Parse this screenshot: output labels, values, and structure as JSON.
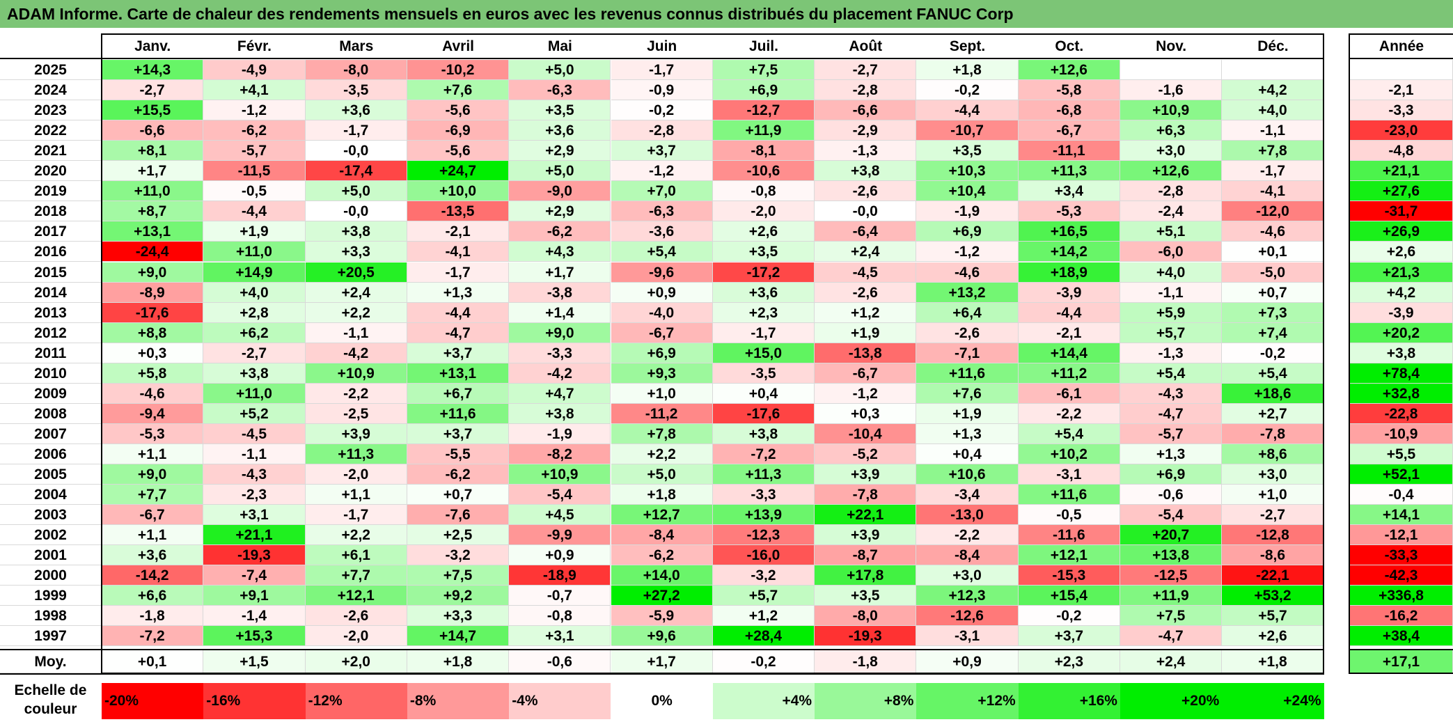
{
  "title": "ADAM Informe. Carte de chaleur des rendements mensuels en euros avec les revenus connus distribués du placement FANUC Corp",
  "chart_data": {
    "type": "heatmap",
    "title": "ADAM Informe. Carte de chaleur des rendements mensuels en euros avec les revenus connus distribués du placement FANUC Corp",
    "months": [
      "Janv.",
      "Févr.",
      "Mars",
      "Avril",
      "Mai",
      "Juin",
      "Juil.",
      "Août",
      "Sept.",
      "Oct.",
      "Nov.",
      "Déc."
    ],
    "annual_header": "Année",
    "rows": [
      {
        "year": "2025",
        "values": [
          "+14,3",
          "-4,9",
          "-8,0",
          "-10,2",
          "+5,0",
          "-1,7",
          "+7,5",
          "-2,7",
          "+1,8",
          "+12,6",
          "",
          ""
        ],
        "annual": ""
      },
      {
        "year": "2024",
        "values": [
          "-2,7",
          "+4,1",
          "-3,5",
          "+7,6",
          "-6,3",
          "-0,9",
          "+6,9",
          "-2,8",
          "-0,2",
          "-5,8",
          "-1,6",
          "+4,2"
        ],
        "annual": "-2,1"
      },
      {
        "year": "2023",
        "values": [
          "+15,5",
          "-1,2",
          "+3,6",
          "-5,6",
          "+3,5",
          "-0,2",
          "-12,7",
          "-6,6",
          "-4,4",
          "-6,8",
          "+10,9",
          "+4,0"
        ],
        "annual": "-3,3"
      },
      {
        "year": "2022",
        "values": [
          "-6,6",
          "-6,2",
          "-1,7",
          "-6,9",
          "+3,6",
          "-2,8",
          "+11,9",
          "-2,9",
          "-10,7",
          "-6,7",
          "+6,3",
          "-1,1"
        ],
        "annual": "-23,0"
      },
      {
        "year": "2021",
        "values": [
          "+8,1",
          "-5,7",
          "-0,0",
          "-5,6",
          "+2,9",
          "+3,7",
          "-8,1",
          "-1,3",
          "+3,5",
          "-11,1",
          "+3,0",
          "+7,8"
        ],
        "annual": "-4,8"
      },
      {
        "year": "2020",
        "values": [
          "+1,7",
          "-11,5",
          "-17,4",
          "+24,7",
          "+5,0",
          "-1,2",
          "-10,6",
          "+3,8",
          "+10,3",
          "+11,3",
          "+12,6",
          "-1,7"
        ],
        "annual": "+21,1"
      },
      {
        "year": "2019",
        "values": [
          "+11,0",
          "-0,5",
          "+5,0",
          "+10,0",
          "-9,0",
          "+7,0",
          "-0,8",
          "-2,6",
          "+10,4",
          "+3,4",
          "-2,8",
          "-4,1"
        ],
        "annual": "+27,6"
      },
      {
        "year": "2018",
        "values": [
          "+8,7",
          "-4,4",
          "-0,0",
          "-13,5",
          "+2,9",
          "-6,3",
          "-2,0",
          "-0,0",
          "-1,9",
          "-5,3",
          "-2,4",
          "-12,0"
        ],
        "annual": "-31,7"
      },
      {
        "year": "2017",
        "values": [
          "+13,1",
          "+1,9",
          "+3,8",
          "-2,1",
          "-6,2",
          "-3,6",
          "+2,6",
          "-6,4",
          "+6,9",
          "+16,5",
          "+5,1",
          "-4,6"
        ],
        "annual": "+26,9"
      },
      {
        "year": "2016",
        "values": [
          "-24,4",
          "+11,0",
          "+3,3",
          "-4,1",
          "+4,3",
          "+5,4",
          "+3,5",
          "+2,4",
          "-1,2",
          "+14,2",
          "-6,0",
          "+0,1"
        ],
        "annual": "+2,6"
      },
      {
        "year": "2015",
        "values": [
          "+9,0",
          "+14,9",
          "+20,5",
          "-1,7",
          "+1,7",
          "-9,6",
          "-17,2",
          "-4,5",
          "-4,6",
          "+18,9",
          "+4,0",
          "-5,0"
        ],
        "annual": "+21,3"
      },
      {
        "year": "2014",
        "values": [
          "-8,9",
          "+4,0",
          "+2,4",
          "+1,3",
          "-3,8",
          "+0,9",
          "+3,6",
          "-2,6",
          "+13,2",
          "-3,9",
          "-1,1",
          "+0,7"
        ],
        "annual": "+4,2"
      },
      {
        "year": "2013",
        "values": [
          "-17,6",
          "+2,8",
          "+2,2",
          "-4,4",
          "+1,4",
          "-4,0",
          "+2,3",
          "+1,2",
          "+6,4",
          "-4,4",
          "+5,9",
          "+7,3"
        ],
        "annual": "-3,9"
      },
      {
        "year": "2012",
        "values": [
          "+8,8",
          "+6,2",
          "-1,1",
          "-4,7",
          "+9,0",
          "-6,7",
          "-1,7",
          "+1,9",
          "-2,6",
          "-2,1",
          "+5,7",
          "+7,4"
        ],
        "annual": "+20,2"
      },
      {
        "year": "2011",
        "values": [
          "+0,3",
          "-2,7",
          "-4,2",
          "+3,7",
          "-3,3",
          "+6,9",
          "+15,0",
          "-13,8",
          "-7,1",
          "+14,4",
          "-1,3",
          "-0,2"
        ],
        "annual": "+3,8"
      },
      {
        "year": "2010",
        "values": [
          "+5,8",
          "+3,8",
          "+10,9",
          "+13,1",
          "-4,2",
          "+9,3",
          "-3,5",
          "-6,7",
          "+11,6",
          "+11,2",
          "+5,4",
          "+5,4"
        ],
        "annual": "+78,4"
      },
      {
        "year": "2009",
        "values": [
          "-4,6",
          "+11,0",
          "-2,2",
          "+6,7",
          "+4,7",
          "+1,0",
          "+0,4",
          "-1,2",
          "+7,6",
          "-6,1",
          "-4,3",
          "+18,6"
        ],
        "annual": "+32,8"
      },
      {
        "year": "2008",
        "values": [
          "-9,4",
          "+5,2",
          "-2,5",
          "+11,6",
          "+3,8",
          "-11,2",
          "-17,6",
          "+0,3",
          "+1,9",
          "-2,2",
          "-4,7",
          "+2,7"
        ],
        "annual": "-22,8"
      },
      {
        "year": "2007",
        "values": [
          "-5,3",
          "-4,5",
          "+3,9",
          "+3,7",
          "-1,9",
          "+7,8",
          "+3,8",
          "-10,4",
          "+1,3",
          "+5,4",
          "-5,7",
          "-7,8"
        ],
        "annual": "-10,9"
      },
      {
        "year": "2006",
        "values": [
          "+1,1",
          "-1,1",
          "+11,3",
          "-5,5",
          "-8,2",
          "+2,2",
          "-7,2",
          "-5,2",
          "+0,4",
          "+10,2",
          "+1,3",
          "+8,6"
        ],
        "annual": "+5,5"
      },
      {
        "year": "2005",
        "values": [
          "+9,0",
          "-4,3",
          "-2,0",
          "-6,2",
          "+10,9",
          "+5,0",
          "+11,3",
          "+3,9",
          "+10,6",
          "-3,1",
          "+6,9",
          "+3,0"
        ],
        "annual": "+52,1"
      },
      {
        "year": "2004",
        "values": [
          "+7,7",
          "-2,3",
          "+1,1",
          "+0,7",
          "-5,4",
          "+1,8",
          "-3,3",
          "-7,8",
          "-3,4",
          "+11,6",
          "-0,6",
          "+1,0"
        ],
        "annual": "-0,4"
      },
      {
        "year": "2003",
        "values": [
          "-6,7",
          "+3,1",
          "-1,7",
          "-7,6",
          "+4,5",
          "+12,7",
          "+13,9",
          "+22,1",
          "-13,0",
          "-0,5",
          "-5,4",
          "-2,7"
        ],
        "annual": "+14,1"
      },
      {
        "year": "2002",
        "values": [
          "+1,1",
          "+21,1",
          "+2,2",
          "+2,5",
          "-9,9",
          "-8,4",
          "-12,3",
          "+3,9",
          "-2,2",
          "-11,6",
          "+20,7",
          "-12,8"
        ],
        "annual": "-12,1"
      },
      {
        "year": "2001",
        "values": [
          "+3,6",
          "-19,3",
          "+6,1",
          "-3,2",
          "+0,9",
          "-6,2",
          "-16,0",
          "-8,7",
          "-8,4",
          "+12,1",
          "+13,8",
          "-8,6"
        ],
        "annual": "-33,3"
      },
      {
        "year": "2000",
        "values": [
          "-14,2",
          "-7,4",
          "+7,7",
          "+7,5",
          "-18,9",
          "+14,0",
          "-3,2",
          "+17,8",
          "+3,0",
          "-15,3",
          "-12,5",
          "-22,1"
        ],
        "annual": "-42,3"
      },
      {
        "year": "1999",
        "values": [
          "+6,6",
          "+9,1",
          "+12,1",
          "+9,2",
          "-0,7",
          "+27,2",
          "+5,7",
          "+3,5",
          "+12,3",
          "+15,4",
          "+11,9",
          "+53,2"
        ],
        "annual": "+336,8"
      },
      {
        "year": "1998",
        "values": [
          "-1,8",
          "-1,4",
          "-2,6",
          "+3,3",
          "-0,8",
          "-5,9",
          "+1,2",
          "-8,0",
          "-12,6",
          "-0,2",
          "+7,5",
          "+5,7"
        ],
        "annual": "-16,2"
      },
      {
        "year": "1997",
        "values": [
          "-7,2",
          "+15,3",
          "-2,0",
          "+14,7",
          "+3,1",
          "+9,6",
          "+28,4",
          "-19,3",
          "-3,1",
          "+3,7",
          "-4,7",
          "+2,6"
        ],
        "annual": "+38,4"
      }
    ],
    "average": {
      "label": "Moy.",
      "values": [
        "+0,1",
        "+1,5",
        "+2,0",
        "+1,8",
        "-0,6",
        "+1,7",
        "-0,2",
        "-1,8",
        "+0,9",
        "+2,3",
        "+2,4",
        "+1,8"
      ],
      "annual": "+17,1"
    },
    "scale": {
      "label": "Echelle de couleur",
      "items": [
        "-20%",
        "-16%",
        "-12%",
        "-8%",
        "-4%",
        "0%",
        "+4%",
        "+8%",
        "+12%",
        "+16%",
        "+20%",
        "+24%"
      ],
      "values": [
        -20,
        -16,
        -12,
        -8,
        -4,
        0,
        4,
        8,
        12,
        16,
        20,
        24
      ]
    },
    "colors": {
      "negative": "#ff0000",
      "neutral": "#ffffff",
      "positive": "#00ee00",
      "title_bar": "#7cc576"
    }
  }
}
